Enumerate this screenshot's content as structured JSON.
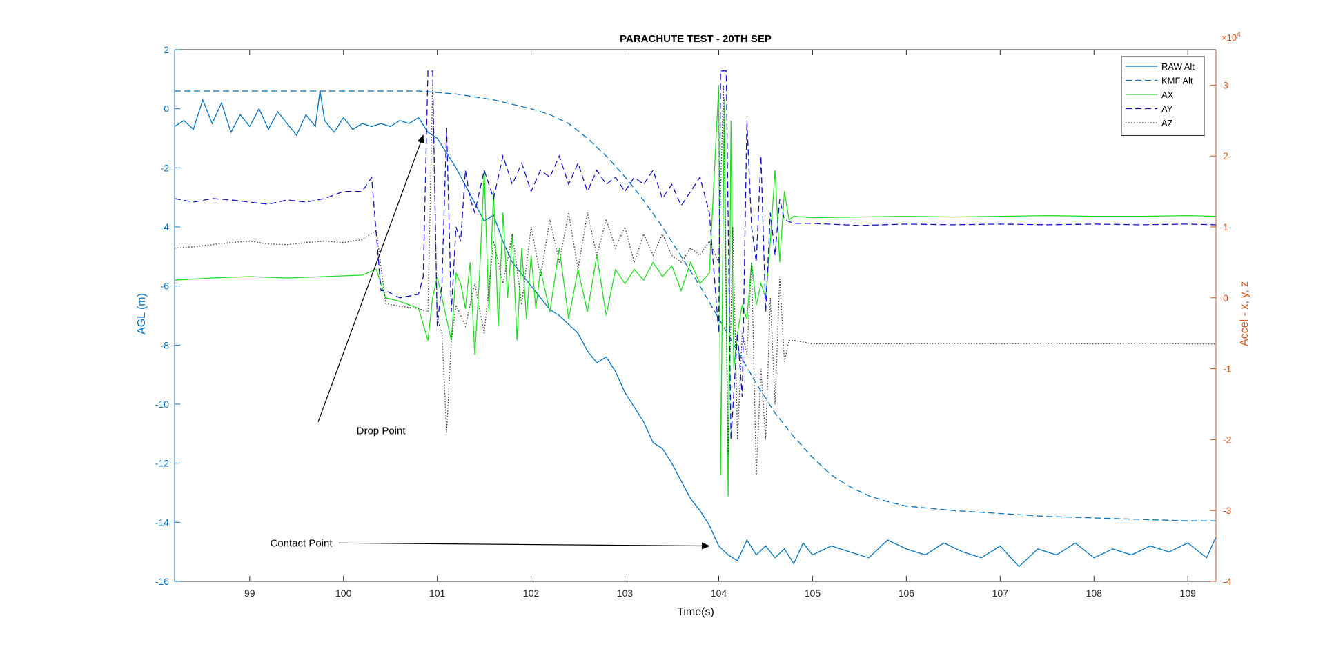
{
  "chart_data": {
    "type": "line",
    "title": "PARACHUTE TEST - 20TH SEP",
    "xlabel": "Time(s)",
    "ylabel_left": "AGL (m)",
    "ylabel_right": "Accel - x, y, z",
    "right_axis_exponent": {
      "base": "×10",
      "power": "4"
    },
    "xlim": [
      98.2,
      109.3
    ],
    "ylim_left": [
      -16,
      2
    ],
    "ylim_right": [
      -40000,
      35000
    ],
    "x_ticks": [
      99,
      100,
      101,
      102,
      103,
      104,
      105,
      106,
      107,
      108,
      109
    ],
    "y_left_ticks": [
      -16,
      -14,
      -12,
      -10,
      -8,
      -6,
      -4,
      -2,
      0,
      2
    ],
    "y_right_ticks": [
      -4,
      -3,
      -2,
      -1,
      0,
      1,
      2,
      3
    ],
    "grid": false,
    "legend_position": "top-right",
    "colors": {
      "left_axis": "#0072BD",
      "right_axis": "#D95319",
      "raw_alt": "#0072BD",
      "kmf_alt": "#0072BD",
      "ax": "#22DD22",
      "ay": "#1010CC",
      "az": "#333333"
    },
    "series": [
      {
        "name": "RAW Alt",
        "axis": "left",
        "style": "solid",
        "color_key": "raw_alt",
        "x": [
          98.2,
          98.3,
          98.4,
          98.5,
          98.6,
          98.7,
          98.8,
          98.9,
          99.0,
          99.1,
          99.2,
          99.3,
          99.4,
          99.5,
          99.6,
          99.7,
          99.75,
          99.8,
          99.9,
          100.0,
          100.1,
          100.2,
          100.3,
          100.4,
          100.5,
          100.6,
          100.7,
          100.8,
          100.9,
          101.0,
          101.1,
          101.2,
          101.3,
          101.4,
          101.5,
          101.6,
          101.7,
          101.8,
          101.9,
          102.0,
          102.1,
          102.2,
          102.3,
          102.4,
          102.5,
          102.6,
          102.7,
          102.8,
          102.9,
          103.0,
          103.1,
          103.2,
          103.3,
          103.4,
          103.5,
          103.6,
          103.7,
          103.8,
          103.9,
          104.0,
          104.1,
          104.2,
          104.3,
          104.4,
          104.5,
          104.6,
          104.7,
          104.8,
          104.9,
          105.0,
          105.2,
          105.4,
          105.6,
          105.8,
          106.0,
          106.2,
          106.4,
          106.6,
          106.8,
          107.0,
          107.2,
          107.4,
          107.6,
          107.8,
          108.0,
          108.2,
          108.4,
          108.6,
          108.8,
          109.0,
          109.2,
          109.3
        ],
        "y": [
          -0.6,
          -0.4,
          -0.7,
          0.3,
          -0.5,
          0.2,
          -0.8,
          -0.2,
          -0.6,
          0.0,
          -0.7,
          -0.1,
          -0.5,
          -0.9,
          -0.2,
          -0.6,
          0.6,
          -0.4,
          -0.8,
          -0.3,
          -0.7,
          -0.5,
          -0.6,
          -0.5,
          -0.6,
          -0.4,
          -0.5,
          -0.3,
          -0.8,
          -1.0,
          -1.5,
          -2.0,
          -2.6,
          -3.2,
          -3.8,
          -3.6,
          -4.5,
          -5.2,
          -5.6,
          -6.0,
          -6.4,
          -6.8,
          -7.0,
          -7.3,
          -7.6,
          -8.2,
          -8.6,
          -8.4,
          -8.9,
          -9.6,
          -10.1,
          -10.6,
          -11.3,
          -11.5,
          -12.0,
          -12.6,
          -13.2,
          -13.6,
          -14.1,
          -14.8,
          -15.1,
          -15.3,
          -14.6,
          -15.1,
          -14.8,
          -15.2,
          -14.9,
          -15.4,
          -14.7,
          -15.1,
          -14.8,
          -15.0,
          -15.2,
          -14.6,
          -14.9,
          -15.1,
          -14.7,
          -15.0,
          -15.2,
          -14.8,
          -15.5,
          -14.9,
          -15.1,
          -14.7,
          -15.2,
          -14.9,
          -15.1,
          -14.8,
          -15.0,
          -14.7,
          -15.2,
          -14.5
        ]
      },
      {
        "name": "KMF Alt",
        "axis": "left",
        "style": "dashed",
        "color_key": "kmf_alt",
        "x": [
          98.2,
          98.5,
          99.0,
          99.5,
          100.0,
          100.5,
          100.8,
          101.0,
          101.2,
          101.4,
          101.6,
          101.8,
          102.0,
          102.2,
          102.4,
          102.6,
          102.8,
          103.0,
          103.2,
          103.4,
          103.6,
          103.8,
          104.0,
          104.2,
          104.4,
          104.6,
          104.8,
          105.0,
          105.2,
          105.4,
          105.6,
          105.8,
          106.0,
          106.5,
          107.0,
          107.5,
          108.0,
          108.5,
          109.0,
          109.3
        ],
        "y": [
          0.6,
          0.6,
          0.6,
          0.6,
          0.6,
          0.6,
          0.6,
          0.55,
          0.5,
          0.4,
          0.3,
          0.15,
          0.0,
          -0.2,
          -0.5,
          -1.0,
          -1.6,
          -2.3,
          -3.1,
          -4.0,
          -5.0,
          -6.0,
          -7.1,
          -8.2,
          -9.3,
          -10.3,
          -11.1,
          -11.8,
          -12.4,
          -12.8,
          -13.1,
          -13.3,
          -13.45,
          -13.6,
          -13.7,
          -13.8,
          -13.85,
          -13.9,
          -13.95,
          -13.95
        ]
      },
      {
        "name": "AX",
        "axis": "right",
        "style": "solid",
        "color_key": "ax",
        "x": [
          98.2,
          98.6,
          99.0,
          99.4,
          99.8,
          100.2,
          100.35,
          100.45,
          100.6,
          100.8,
          100.9,
          100.95,
          101.0,
          101.05,
          101.1,
          101.15,
          101.2,
          101.25,
          101.3,
          101.35,
          101.4,
          101.45,
          101.5,
          101.55,
          101.6,
          101.65,
          101.7,
          101.75,
          101.8,
          101.85,
          101.9,
          101.95,
          102.0,
          102.05,
          102.1,
          102.2,
          102.3,
          102.4,
          102.5,
          102.6,
          102.7,
          102.8,
          102.9,
          103.0,
          103.1,
          103.2,
          103.3,
          103.4,
          103.5,
          103.6,
          103.7,
          103.8,
          103.9,
          104.0,
          104.02,
          104.06,
          104.1,
          104.13,
          104.16,
          104.2,
          104.25,
          104.3,
          104.35,
          104.4,
          104.45,
          104.5,
          104.55,
          104.6,
          104.65,
          104.7,
          104.75,
          104.8,
          105.0,
          105.5,
          106.0,
          106.5,
          107.0,
          107.5,
          108.0,
          108.5,
          109.0,
          109.3
        ],
        "y": [
          2500,
          2800,
          3000,
          2800,
          3000,
          3200,
          4000,
          0,
          -500,
          -1500,
          -6000,
          0,
          3000,
          0,
          -3000,
          -6000,
          3500,
          2000,
          -1500,
          5000,
          -8000,
          3000,
          18000,
          -2000,
          15000,
          -4000,
          12000,
          0,
          9000,
          -6000,
          7000,
          -3000,
          6000,
          -1500,
          4000,
          -2000,
          7000,
          -3000,
          4000,
          -2000,
          6000,
          -2500,
          4000,
          2000,
          4000,
          2500,
          5000,
          3000,
          4500,
          1000,
          5000,
          2000,
          3500,
          30000,
          -25000,
          28000,
          -28000,
          25000,
          -10000,
          -5000,
          -1000,
          -3000,
          5000,
          -1000,
          2000,
          0,
          8000,
          18000,
          5000,
          15000,
          11000,
          11500,
          11300,
          11400,
          11500,
          11400,
          11500,
          11600,
          11500,
          11500,
          11600,
          11500
        ]
      },
      {
        "name": "AY",
        "axis": "right",
        "style": "dashed",
        "color_key": "ay",
        "x": [
          98.2,
          98.4,
          98.6,
          98.8,
          99.0,
          99.2,
          99.4,
          99.6,
          99.8,
          100.0,
          100.2,
          100.3,
          100.4,
          100.45,
          100.6,
          100.8,
          100.85,
          100.9,
          100.95,
          101.0,
          101.05,
          101.1,
          101.15,
          101.2,
          101.25,
          101.3,
          101.35,
          101.4,
          101.5,
          101.6,
          101.7,
          101.8,
          101.9,
          102.0,
          102.1,
          102.2,
          102.3,
          102.4,
          102.5,
          102.6,
          102.7,
          102.8,
          102.9,
          103.0,
          103.1,
          103.2,
          103.3,
          103.4,
          103.5,
          103.6,
          103.7,
          103.8,
          103.9,
          104.0,
          104.02,
          104.08,
          104.13,
          104.2,
          104.25,
          104.3,
          104.35,
          104.4,
          104.45,
          104.5,
          104.55,
          104.6,
          104.65,
          104.7,
          104.8,
          105.0,
          105.5,
          106.0,
          106.5,
          107.0,
          107.5,
          108.0,
          108.5,
          109.0,
          109.3
        ],
        "y": [
          14000,
          13500,
          14000,
          13800,
          13500,
          13200,
          13800,
          13500,
          14000,
          15000,
          15000,
          17000,
          1000,
          1000,
          0,
          500,
          3000,
          32000,
          32000,
          -4000,
          2000,
          24000,
          -2000,
          10000,
          8000,
          18000,
          14000,
          12000,
          18000,
          14000,
          20000,
          16000,
          19000,
          15000,
          18000,
          17000,
          20000,
          16000,
          19000,
          15000,
          18000,
          16000,
          17000,
          15000,
          17000,
          16000,
          18000,
          14000,
          16000,
          13000,
          15000,
          17000,
          12000,
          -5000,
          32000,
          32000,
          -20000,
          -5000,
          -14000,
          25000,
          10000,
          5000,
          20000,
          -2000,
          12000,
          6000,
          14000,
          11000,
          10500,
          10500,
          10200,
          10400,
          10300,
          10400,
          10300,
          10400,
          10300,
          10400,
          10300
        ]
      },
      {
        "name": "AZ",
        "axis": "right",
        "style": "dotted",
        "color_key": "az",
        "x": [
          98.2,
          98.4,
          98.6,
          98.8,
          99.0,
          99.2,
          99.4,
          99.6,
          99.8,
          100.0,
          100.2,
          100.35,
          100.45,
          100.6,
          100.8,
          100.9,
          100.95,
          101.0,
          101.05,
          101.1,
          101.15,
          101.2,
          101.3,
          101.4,
          101.5,
          101.6,
          101.7,
          101.8,
          101.9,
          102.0,
          102.1,
          102.2,
          102.3,
          102.4,
          102.5,
          102.6,
          102.7,
          102.8,
          102.9,
          103.0,
          103.1,
          103.2,
          103.3,
          103.4,
          103.5,
          103.6,
          103.7,
          103.8,
          103.9,
          104.0,
          104.05,
          104.1,
          104.15,
          104.2,
          104.25,
          104.3,
          104.35,
          104.4,
          104.45,
          104.5,
          104.55,
          104.6,
          104.65,
          104.7,
          104.75,
          104.8,
          105.0,
          105.5,
          106.0,
          106.5,
          107.0,
          107.5,
          108.0,
          108.5,
          109.0,
          109.3
        ],
        "y": [
          7000,
          7200,
          7500,
          7800,
          8000,
          7600,
          7500,
          7800,
          8000,
          7800,
          8200,
          9500,
          -800,
          -1200,
          -1500,
          -2000,
          30000,
          -3000,
          -5000,
          -19000,
          -6000,
          -1000,
          -4000,
          2000,
          -5000,
          8000,
          2000,
          9000,
          -1000,
          10000,
          3000,
          11000,
          5000,
          12000,
          4000,
          12000,
          6000,
          11000,
          7000,
          10000,
          5000,
          9000,
          6000,
          9000,
          6000,
          5000,
          7000,
          6000,
          8000,
          5000,
          30000,
          -22000,
          10000,
          -20000,
          -5000,
          -8000,
          5000,
          -25000,
          -10000,
          -20000,
          0,
          -15000,
          3000,
          -9000,
          -6000,
          -6000,
          -6500,
          -6500,
          -6500,
          -6400,
          -6500,
          -6400,
          -6500,
          -6400,
          -6500,
          -6500
        ]
      }
    ],
    "annotations": [
      {
        "text": "Drop Point",
        "text_x": 100.4,
        "text_y": -10.9,
        "arrow_from_x": 99.73,
        "arrow_from_y": -10.6,
        "arrow_to_x": 100.85,
        "arrow_to_y": -0.9
      },
      {
        "text": "Contact Point",
        "text_x": 99.55,
        "text_y": -14.7,
        "arrow_from_x": 99.95,
        "arrow_from_y": -14.7,
        "arrow_to_x": 103.9,
        "arrow_to_y": -14.8
      }
    ]
  }
}
